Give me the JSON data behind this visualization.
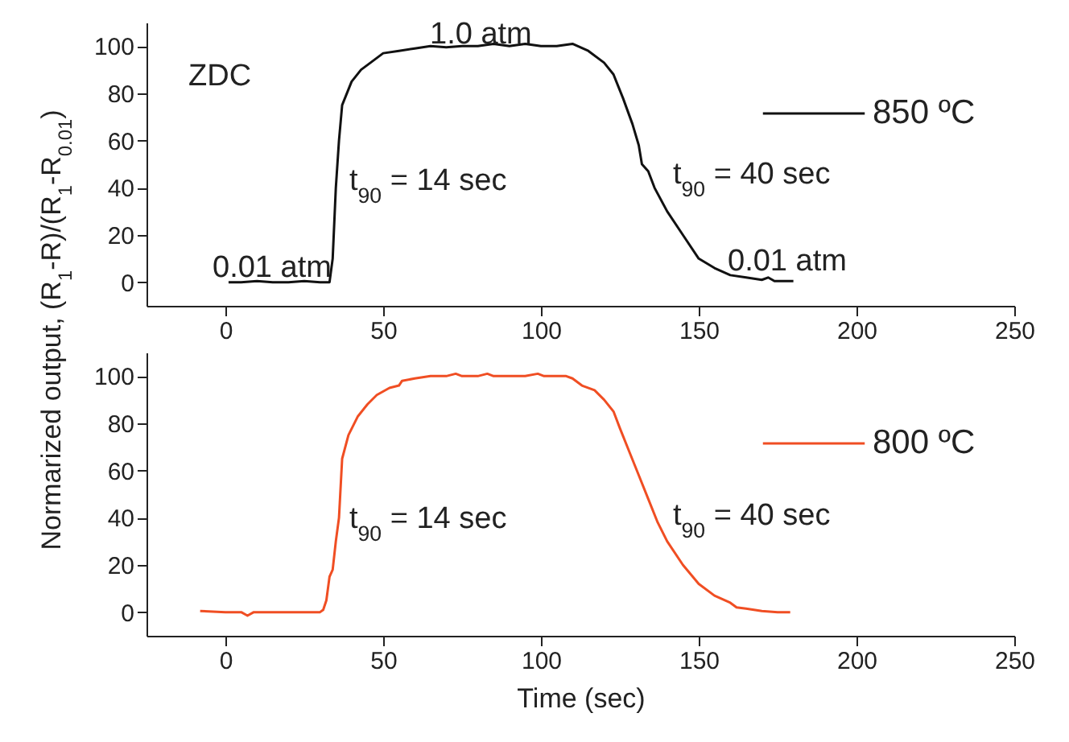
{
  "chart_data": [
    {
      "type": "line",
      "ylabel": "Normarized output, (R$_{1}$-R)/(R$_{1}$-R$_{0.01}$)",
      "legend": "top right",
      "xlim": [
        -25,
        250
      ],
      "xticks": [
        0,
        50,
        100,
        150,
        200,
        250
      ],
      "ylim": [
        -10,
        110
      ],
      "yticks": [
        0,
        20,
        40,
        60,
        80,
        100
      ],
      "annotations": [
        "ZDC",
        "1.0 atm",
        "0.01 atm",
        "t$_{90}$ = 14 sec",
        "t$_{90}$ = 40 sec",
        "0.01 atm"
      ],
      "series": [
        {
          "name": "850 ºC",
          "color": "#111111",
          "x": [
            1,
            5,
            10,
            15,
            20,
            25,
            30,
            33,
            34,
            35,
            36,
            37,
            40,
            43,
            46,
            50,
            55,
            60,
            65,
            70,
            75,
            80,
            85,
            90,
            95,
            100,
            105,
            110,
            115,
            120,
            123,
            126,
            129,
            131,
            132,
            134,
            136,
            140,
            145,
            150,
            155,
            160,
            165,
            170,
            172,
            174,
            180
          ],
          "values": [
            0,
            0,
            0.5,
            0,
            0,
            0.5,
            0,
            0,
            10,
            40,
            60,
            75,
            85,
            90,
            93,
            97,
            98,
            99,
            100,
            99.5,
            100,
            100,
            101,
            100,
            101,
            100,
            100,
            101,
            98,
            93,
            88,
            78,
            67,
            58,
            50,
            47,
            40,
            30,
            20,
            10,
            6,
            3,
            2,
            1,
            2,
            0.5,
            0.5
          ]
        }
      ]
    },
    {
      "type": "line",
      "xlabel": "Time (sec)",
      "legend": "top right",
      "xlim": [
        -25,
        250
      ],
      "xticks": [
        0,
        50,
        100,
        150,
        200,
        250
      ],
      "ylim": [
        -10,
        110
      ],
      "yticks": [
        0,
        20,
        40,
        60,
        80,
        100
      ],
      "annotations": [
        "t$_{90}$ = 14 sec",
        "t$_{90}$ = 40 sec"
      ],
      "series": [
        {
          "name": "800 ºC",
          "color": "#f04e23",
          "x": [
            -8,
            0,
            5,
            7,
            9,
            20,
            30,
            31,
            32,
            33,
            34,
            35,
            36,
            37,
            39,
            42,
            45,
            48,
            52,
            55,
            56,
            60,
            65,
            70,
            73,
            75,
            80,
            83,
            85,
            95,
            99,
            101,
            108,
            110,
            113,
            117,
            120,
            123,
            125,
            128,
            131,
            134,
            137,
            140,
            145,
            150,
            155,
            160,
            162,
            165,
            170,
            175,
            179
          ],
          "values": [
            0.5,
            0,
            0,
            -1.5,
            0,
            0,
            0,
            1,
            5,
            15,
            18,
            30,
            40,
            65,
            75,
            83,
            88,
            92,
            95,
            96,
            98,
            99,
            100,
            100,
            101,
            100,
            100,
            101,
            100,
            100,
            101,
            100,
            100,
            99,
            96,
            94,
            90,
            85,
            78,
            68,
            58,
            48,
            38,
            30,
            20,
            12,
            7,
            4,
            2,
            1.5,
            0.5,
            0,
            0
          ]
        }
      ]
    }
  ]
}
